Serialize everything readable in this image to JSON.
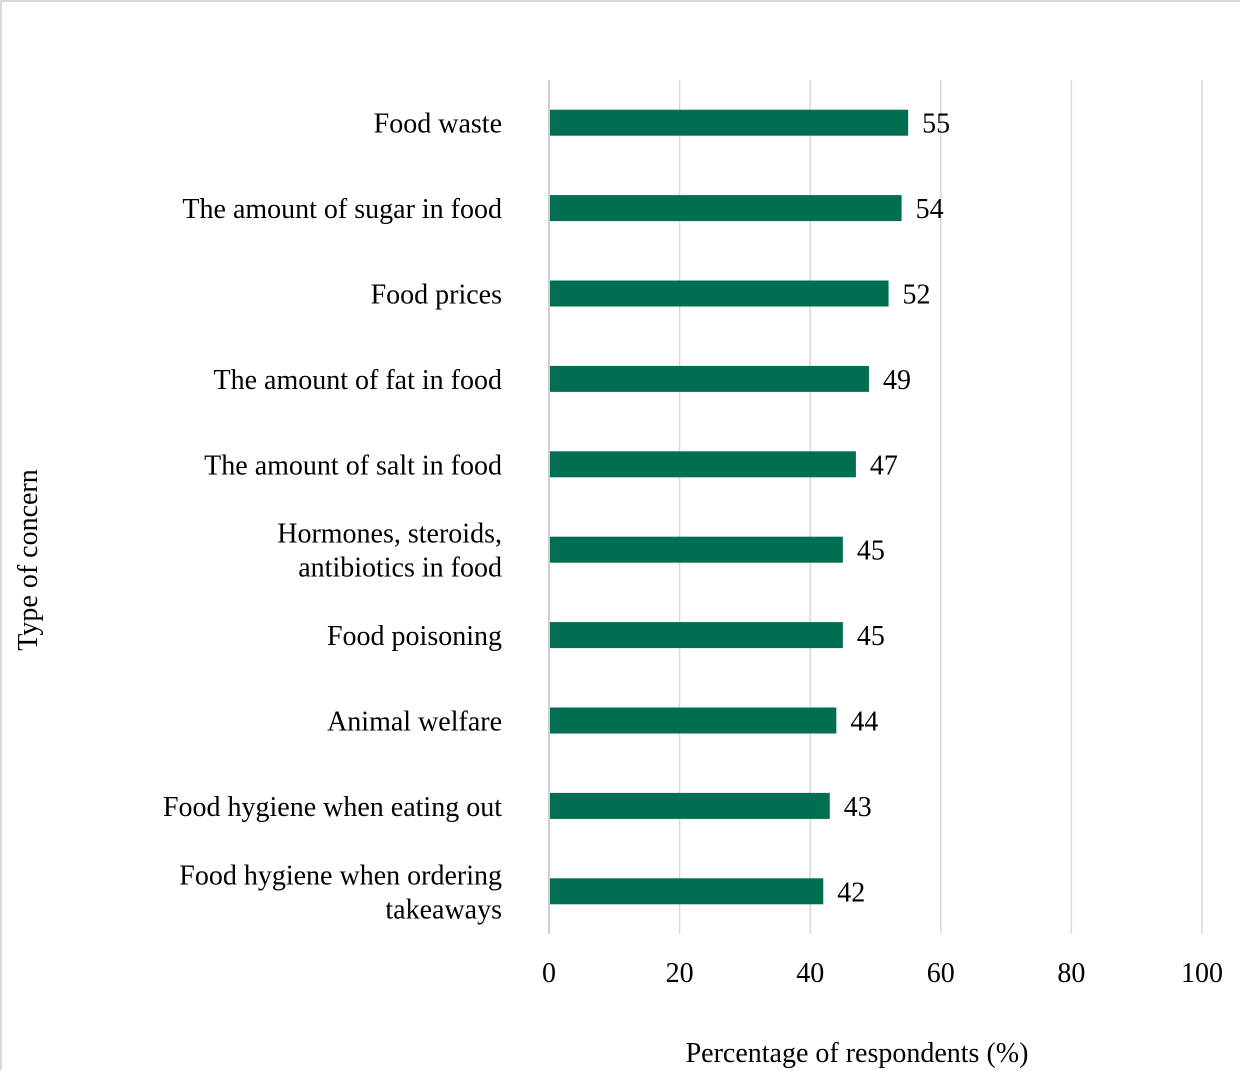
{
  "chart_data": {
    "type": "bar",
    "orientation": "horizontal",
    "title": "",
    "xlabel": "Percentage of respondents (%)",
    "ylabel": "Type of concern",
    "xlim": [
      0,
      100
    ],
    "x_ticks": [
      0,
      20,
      40,
      60,
      80,
      100
    ],
    "grid": "vertical",
    "legend": "none",
    "bar_color": "#006f51",
    "categories": [
      [
        "Food waste"
      ],
      [
        "The amount of sugar in food"
      ],
      [
        "Food prices"
      ],
      [
        "The amount of fat in food"
      ],
      [
        "The amount of salt in food"
      ],
      [
        "Hormones, steroids,",
        "antibiotics in food"
      ],
      [
        "Food poisoning"
      ],
      [
        "Animal welfare"
      ],
      [
        "Food hygiene when eating out"
      ],
      [
        "Food hygiene when ordering",
        "takeaways"
      ]
    ],
    "values": [
      55,
      54,
      52,
      49,
      47,
      45,
      45,
      44,
      43,
      42
    ],
    "data_labels": [
      "55",
      "54",
      "52",
      "49",
      "47",
      "45",
      "45",
      "44",
      "43",
      "42"
    ]
  }
}
